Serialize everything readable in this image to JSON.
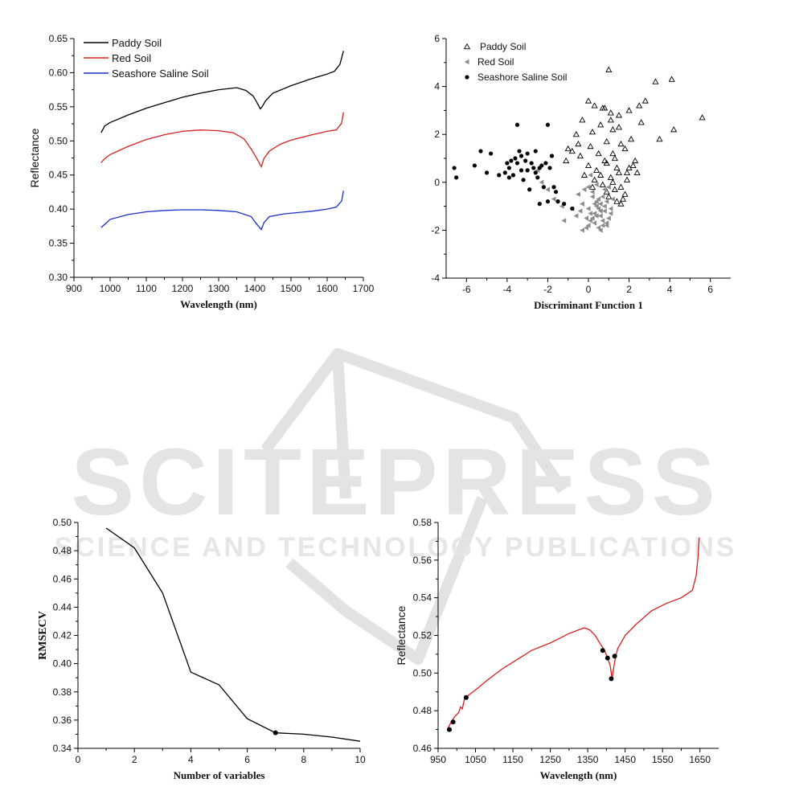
{
  "watermark": {
    "line1": "SCITEPRESS",
    "line2": "SCIENCE AND TECHNOLOGY PUBLICATIONS"
  },
  "chart_data": [
    {
      "type": "line",
      "xlabel": "Wavelength (nm)",
      "ylabel": "Reflectance",
      "xlim": [
        900,
        1700
      ],
      "ylim": [
        0.3,
        0.65
      ],
      "xticks": [
        900,
        1000,
        1100,
        1200,
        1300,
        1400,
        1500,
        1600,
        1700
      ],
      "yticks": [
        0.3,
        0.35,
        0.4,
        0.45,
        0.5,
        0.55,
        0.6,
        0.65
      ],
      "legend": "top-left",
      "series": [
        {
          "name": "Paddy Soil",
          "color": "#000000",
          "x": [
            975,
            985,
            1000,
            1050,
            1100,
            1150,
            1200,
            1250,
            1300,
            1350,
            1375,
            1395,
            1405,
            1415,
            1420,
            1430,
            1450,
            1500,
            1550,
            1600,
            1620,
            1635,
            1645
          ],
          "y": [
            0.512,
            0.522,
            0.527,
            0.538,
            0.548,
            0.556,
            0.564,
            0.57,
            0.575,
            0.578,
            0.574,
            0.566,
            0.557,
            0.547,
            0.55,
            0.559,
            0.57,
            0.581,
            0.59,
            0.598,
            0.602,
            0.612,
            0.632
          ]
        },
        {
          "name": "Red Soil",
          "color": "#d62020",
          "x": [
            975,
            985,
            1000,
            1050,
            1100,
            1150,
            1200,
            1250,
            1300,
            1340,
            1370,
            1390,
            1400,
            1410,
            1418,
            1425,
            1440,
            1470,
            1500,
            1550,
            1600,
            1625,
            1640,
            1645
          ],
          "y": [
            0.468,
            0.474,
            0.48,
            0.492,
            0.502,
            0.509,
            0.514,
            0.516,
            0.515,
            0.512,
            0.503,
            0.488,
            0.479,
            0.47,
            0.462,
            0.474,
            0.485,
            0.495,
            0.501,
            0.508,
            0.514,
            0.516,
            0.526,
            0.542
          ]
        },
        {
          "name": "Seashore Saline Soil",
          "color": "#1a2ec8",
          "x": [
            975,
            990,
            1000,
            1050,
            1100,
            1150,
            1200,
            1250,
            1300,
            1350,
            1390,
            1405,
            1418,
            1425,
            1440,
            1480,
            1520,
            1560,
            1600,
            1625,
            1640,
            1645
          ],
          "y": [
            0.373,
            0.38,
            0.385,
            0.392,
            0.396,
            0.398,
            0.399,
            0.399,
            0.398,
            0.396,
            0.389,
            0.378,
            0.37,
            0.38,
            0.389,
            0.393,
            0.395,
            0.397,
            0.4,
            0.403,
            0.412,
            0.427
          ]
        }
      ]
    },
    {
      "type": "scatter",
      "xlabel": "Discriminant Function 1",
      "ylabel": "",
      "xlim": [
        -7,
        7
      ],
      "ylim": [
        -4,
        6
      ],
      "xticks": [
        -6,
        -4,
        -2,
        0,
        2,
        4,
        6
      ],
      "yticks": [
        -4,
        -2,
        0,
        2,
        4,
        6
      ],
      "legend": "top-left",
      "series": [
        {
          "name": "Paddy Soil",
          "marker": "triangle-up-open",
          "x": [
            1.0,
            3.3,
            4.1,
            5.6,
            0.0,
            0.3,
            0.7,
            1.1,
            1.5,
            2.0,
            2.5,
            2.8,
            3.5,
            4.2,
            -1.0,
            -0.6,
            -0.3,
            0.2,
            0.6,
            1.2,
            1.6,
            2.1,
            2.6,
            -0.8,
            -0.4,
            0.1,
            0.5,
            0.9,
            1.3,
            1.8,
            2.3,
            0.0,
            0.4,
            0.8,
            1.4,
            1.9,
            1.1,
            1.5,
            2.0,
            -0.2,
            0.3,
            0.7,
            1.2,
            1.6,
            0.9,
            1.3,
            1.8,
            -1.1,
            -0.5,
            1.0,
            1.4,
            2.2,
            0.6,
            1.7,
            1.2,
            1.5,
            2.4,
            0.2,
            0.9,
            1.9,
            1.6,
            0.8,
            1.1
          ],
          "y": [
            4.7,
            4.2,
            4.3,
            2.7,
            3.4,
            3.2,
            3.1,
            2.9,
            2.8,
            3.0,
            3.2,
            3.4,
            1.8,
            2.2,
            1.4,
            2.0,
            2.6,
            2.1,
            2.4,
            2.2,
            1.6,
            1.8,
            2.5,
            1.3,
            1.1,
            1.5,
            1.2,
            1.7,
            1.0,
            1.4,
            0.9,
            0.7,
            0.5,
            0.9,
            0.6,
            0.4,
            0.2,
            0.4,
            0.6,
            0.3,
            0.1,
            -0.1,
            0.0,
            -0.2,
            -0.4,
            -0.3,
            -0.5,
            0.9,
            1.6,
            -0.6,
            -0.8,
            0.7,
            0.3,
            -0.7,
            1.2,
            2.3,
            0.4,
            -0.2,
            0.8,
            0.1,
            -0.9,
            3.1,
            2.6
          ]
        },
        {
          "name": "Red Soil",
          "marker": "triangle-left-filled",
          "x": [
            -2.5,
            -2.3,
            -2.0,
            -1.7,
            -1.3,
            -1.2,
            -0.8,
            -0.6,
            -0.4,
            -0.3,
            -0.1,
            0.0,
            0.1,
            0.2,
            0.3,
            0.4,
            0.5,
            0.6,
            0.7,
            0.8,
            0.9,
            1.0,
            1.1,
            1.2,
            -0.5,
            -0.2,
            0.0,
            0.2,
            0.4,
            0.6,
            0.8,
            1.0,
            -0.1,
            0.1,
            0.3,
            0.5,
            0.7,
            0.9,
            0.2,
            0.4,
            0.6,
            0.8,
            0.0,
            0.5,
            0.3,
            0.7,
            1.1,
            -0.3,
            0.6,
            0.9,
            0.1,
            0.4
          ],
          "y": [
            0.5,
            0.0,
            -0.3,
            -0.7,
            -1.0,
            -1.6,
            -1.1,
            -1.4,
            -1.2,
            -0.9,
            -1.5,
            -1.8,
            -1.3,
            -0.6,
            -1.7,
            -1.0,
            -1.9,
            -1.4,
            -1.6,
            -1.2,
            -0.8,
            -1.5,
            -1.1,
            -0.7,
            -0.5,
            -0.3,
            -0.2,
            -0.4,
            -0.8,
            -0.9,
            -0.3,
            -0.2,
            -1.9,
            -1.6,
            -1.3,
            -1.1,
            -1.8,
            -1.7,
            -1.5,
            -1.4,
            -1.2,
            -1.0,
            -1.1,
            -0.7,
            -0.9,
            -0.6,
            -1.3,
            -2.0,
            -2.0,
            -1.8,
            0.3,
            -0.1
          ]
        },
        {
          "name": "Seashore Saline Soil",
          "marker": "circle-filled",
          "x": [
            -6.6,
            -6.5,
            -5.6,
            -5.3,
            -5.0,
            -4.8,
            -4.4,
            -4.1,
            -4.0,
            -3.9,
            -3.8,
            -3.7,
            -3.6,
            -3.5,
            -3.4,
            -3.3,
            -3.2,
            -3.1,
            -3.0,
            -2.9,
            -2.8,
            -2.7,
            -2.6,
            -2.5,
            -2.4,
            -2.3,
            -2.2,
            -2.1,
            -2.0,
            -1.9,
            -1.8,
            -1.7,
            -1.6,
            -1.5,
            -3.5,
            -2.0,
            -3.3,
            -3.0,
            -2.6,
            -2.4,
            -3.9,
            -1.2,
            -0.8
          ],
          "y": [
            0.6,
            0.2,
            0.7,
            1.3,
            0.4,
            1.2,
            0.3,
            0.4,
            0.8,
            0.6,
            0.9,
            0.3,
            1.0,
            0.8,
            1.3,
            0.5,
            0.1,
            0.9,
            0.5,
            -0.3,
            0.8,
            0.6,
            1.3,
            0.2,
            0.6,
            0.7,
            -0.2,
            0.8,
            -0.8,
            0.6,
            1.1,
            -0.2,
            -0.4,
            -0.8,
            2.4,
            2.4,
            1.1,
            1.2,
            0.4,
            -0.9,
            0.2,
            -0.9,
            -1.1
          ]
        }
      ]
    },
    {
      "type": "line",
      "xlabel": "Number of variables",
      "ylabel": "RMSECV",
      "xlim": [
        0,
        10
      ],
      "ylim": [
        0.34,
        0.5
      ],
      "xticks": [
        0,
        2,
        4,
        6,
        8,
        10
      ],
      "yticks": [
        0.34,
        0.36,
        0.38,
        0.4,
        0.42,
        0.44,
        0.46,
        0.48,
        0.5
      ],
      "series": [
        {
          "color": "#000000",
          "x": [
            1,
            2,
            3,
            4,
            5,
            6,
            7,
            8,
            9,
            10
          ],
          "y": [
            0.496,
            0.482,
            0.45,
            0.394,
            0.385,
            0.361,
            0.351,
            0.35,
            0.348,
            0.345
          ]
        }
      ],
      "highlight": {
        "x": 7,
        "y": 0.351
      }
    },
    {
      "type": "line",
      "xlabel": "Wavelength (nm)",
      "ylabel": "Reflectance",
      "xlim": [
        950,
        1700
      ],
      "ylim": [
        0.46,
        0.58
      ],
      "xticks": [
        950,
        1050,
        1150,
        1250,
        1350,
        1450,
        1550,
        1650
      ],
      "yticks": [
        0.46,
        0.48,
        0.5,
        0.52,
        0.54,
        0.56,
        0.58
      ],
      "series": [
        {
          "color": "#d62020",
          "x": [
            975,
            985,
            995,
            1005,
            1010,
            1015,
            1020,
            1030,
            1050,
            1080,
            1120,
            1160,
            1200,
            1250,
            1300,
            1340,
            1355,
            1370,
            1385,
            1395,
            1403,
            1410,
            1415,
            1422,
            1430,
            1450,
            1480,
            1520,
            1560,
            1600,
            1630,
            1640,
            1645,
            1648
          ],
          "y": [
            0.47,
            0.474,
            0.477,
            0.479,
            0.482,
            0.481,
            0.486,
            0.488,
            0.491,
            0.496,
            0.502,
            0.507,
            0.512,
            0.516,
            0.521,
            0.524,
            0.523,
            0.52,
            0.515,
            0.512,
            0.508,
            0.504,
            0.497,
            0.506,
            0.513,
            0.52,
            0.526,
            0.533,
            0.537,
            0.54,
            0.544,
            0.552,
            0.562,
            0.572
          ]
        }
      ],
      "selected_points": {
        "x": [
          980,
          990,
          1025,
          1390,
          1403,
          1413,
          1422
        ],
        "y": [
          0.47,
          0.474,
          0.487,
          0.512,
          0.508,
          0.497,
          0.509
        ]
      }
    }
  ]
}
